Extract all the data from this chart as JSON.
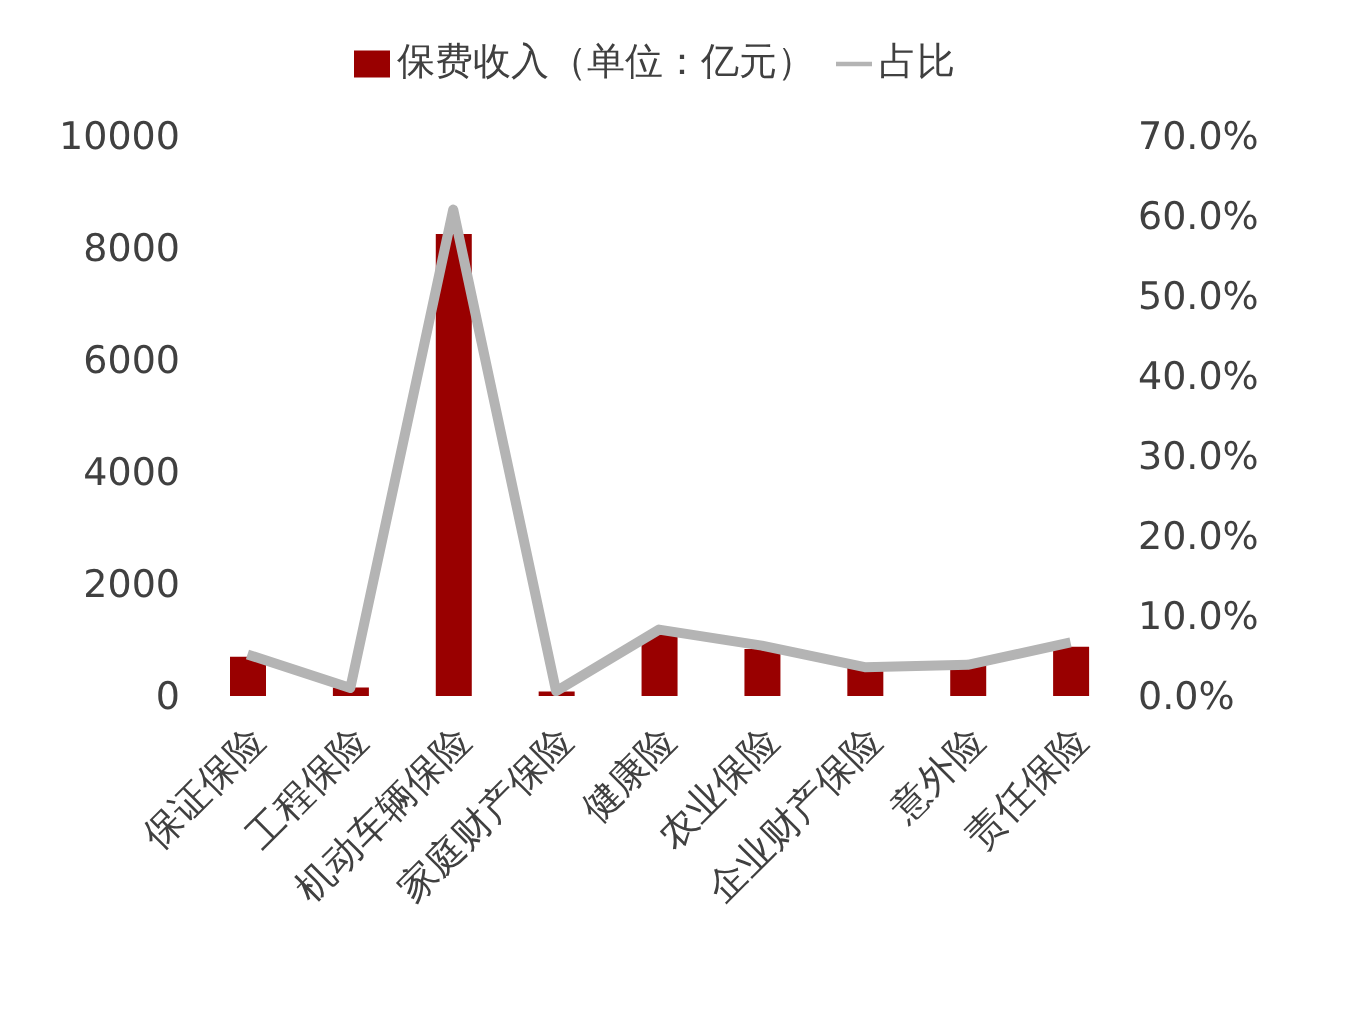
{
  "chart_data": {
    "type": "bar",
    "categories": [
      "保证保险",
      "工程保险",
      "机动车辆保险",
      "家庭财产保险",
      "健康险",
      "农业保险",
      "企业财产保险",
      "意外险",
      "责任保险"
    ],
    "series": [
      {
        "name": "保费收入（单位：亿元）",
        "color": "#990000",
        "values": [
          700,
          150,
          8250,
          80,
          1090,
          840,
          540,
          600,
          880
        ]
      },
      {
        "name": "占比",
        "type": "line",
        "axis": "y2",
        "color": "#b4b4b4",
        "values": [
          5.2,
          1.0,
          60.8,
          0.6,
          8.3,
          6.3,
          3.6,
          3.9,
          6.7
        ]
      }
    ],
    "ylim": [
      0,
      10000
    ],
    "yticks": [
      0,
      2000,
      4000,
      6000,
      8000,
      10000
    ],
    "y2lim": [
      0,
      70
    ],
    "y2ticks": [
      {
        "value": 0,
        "label": "0.0%"
      },
      {
        "value": 10,
        "label": "10.0%"
      },
      {
        "value": 20,
        "label": "20.0%"
      },
      {
        "value": 30,
        "label": "30.0%"
      },
      {
        "value": 40,
        "label": "40.0%"
      },
      {
        "value": 50,
        "label": "50.0%"
      },
      {
        "value": 60,
        "label": "60.0%"
      },
      {
        "value": 70,
        "label": "70.0%"
      }
    ],
    "grid": false,
    "legend": "top",
    "marker": "none",
    "line_style": "solid"
  }
}
